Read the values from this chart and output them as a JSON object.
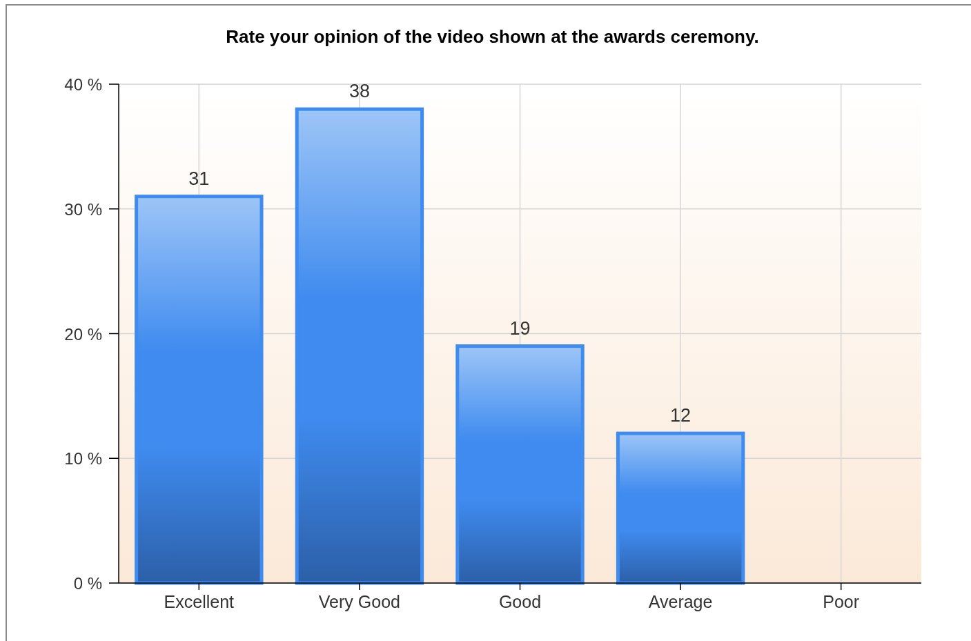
{
  "chart_data": {
    "type": "bar",
    "title": "Rate your opinion of the video shown at the awards ceremony.",
    "categories": [
      "Excellent",
      "Very Good",
      "Good",
      "Average",
      "Poor"
    ],
    "values": [
      31,
      38,
      19,
      12,
      0
    ],
    "value_labels": [
      "31",
      "38",
      "19",
      "12",
      null
    ],
    "color": "#3f8bef",
    "ylim": [
      0,
      40
    ],
    "yticks": [
      {
        "value": 0,
        "label": "0 %"
      },
      {
        "value": 10,
        "label": "10 %"
      },
      {
        "value": 20,
        "label": "20 %"
      },
      {
        "value": 30,
        "label": "30 %"
      },
      {
        "value": 40,
        "label": "40 %"
      }
    ],
    "grid": true
  }
}
